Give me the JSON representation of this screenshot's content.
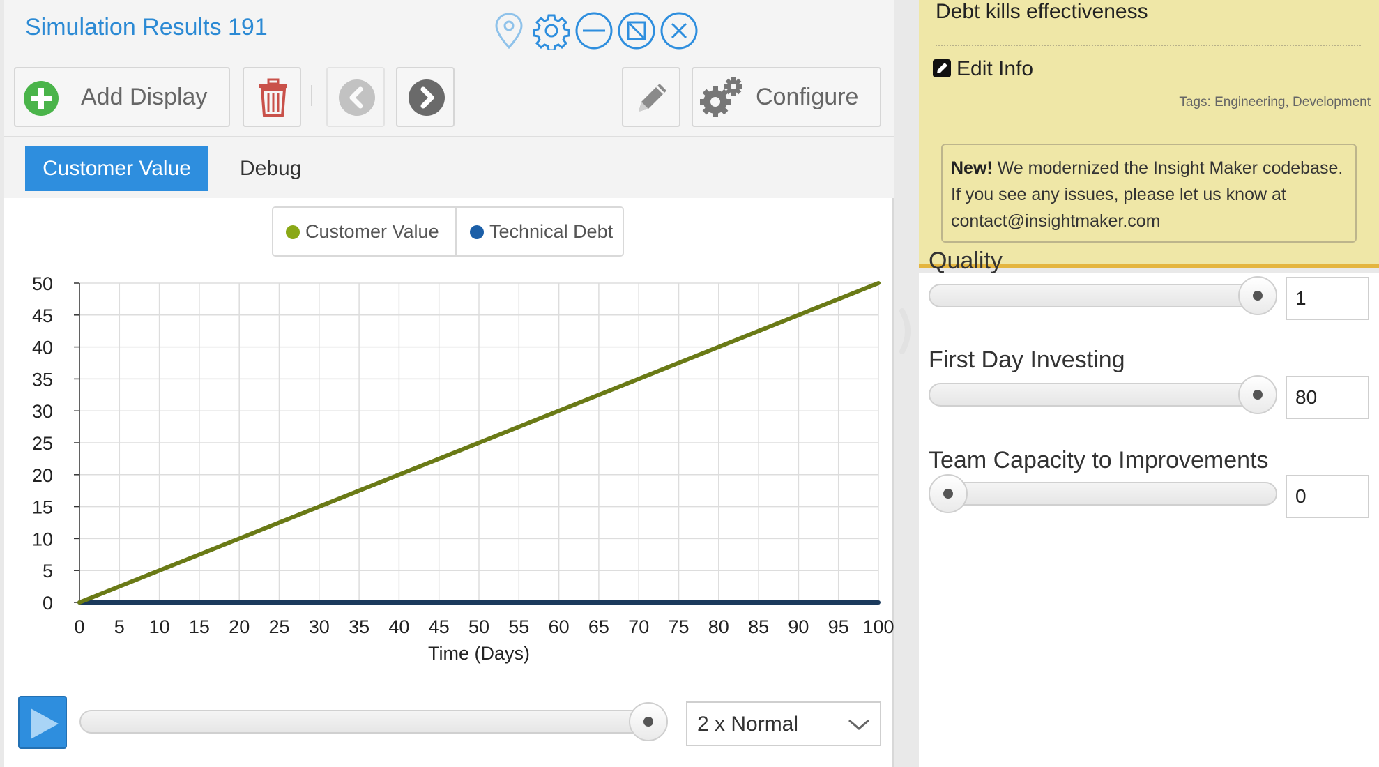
{
  "window": {
    "title": "Simulation Results 191"
  },
  "toolbar": {
    "add_display_label": "Add Display",
    "configure_label": "Configure"
  },
  "tabs": [
    {
      "label": "Customer Value",
      "active": true
    },
    {
      "label": "Debug",
      "active": false
    }
  ],
  "legend": [
    {
      "name": "Customer Value",
      "color": "#8aa816"
    },
    {
      "name": "Technical Debt",
      "color": "#1c5fa8"
    }
  ],
  "chart_data": {
    "type": "line",
    "xlabel": "Time (Days)",
    "ylabel": "",
    "xlim": [
      0,
      100
    ],
    "ylim": [
      0,
      50
    ],
    "x_ticks": [
      0,
      5,
      10,
      15,
      20,
      25,
      30,
      35,
      40,
      45,
      50,
      55,
      60,
      65,
      70,
      75,
      80,
      85,
      90,
      95,
      100
    ],
    "y_ticks": [
      0,
      5,
      10,
      15,
      20,
      25,
      30,
      35,
      40,
      45,
      50
    ],
    "grid": true,
    "legend_position": "top-center",
    "series": [
      {
        "name": "Customer Value",
        "color": "#6a7a16",
        "x": [
          0,
          100
        ],
        "y": [
          0,
          50
        ]
      },
      {
        "name": "Technical Debt",
        "color": "#1b3a5c",
        "x": [
          0,
          100
        ],
        "y": [
          0,
          0
        ]
      }
    ]
  },
  "playback": {
    "speed": "2 x Normal",
    "progress": 1.0
  },
  "info": {
    "title": "Debt kills effectiveness",
    "edit_label": "Edit Info",
    "tags": "Tags: Engineering, Development",
    "notice_bold": "New!",
    "notice_text": " We modernized the Insight Maker codebase. If you see any issues, please let us know at contact@insightmaker.com"
  },
  "params": [
    {
      "label": "Quality",
      "value": "1",
      "fraction": 1.0
    },
    {
      "label": "First Day Investing",
      "value": "80",
      "fraction": 1.0
    },
    {
      "label": "Team Capacity to Improvements",
      "value": "0",
      "fraction": 0.0
    }
  ]
}
